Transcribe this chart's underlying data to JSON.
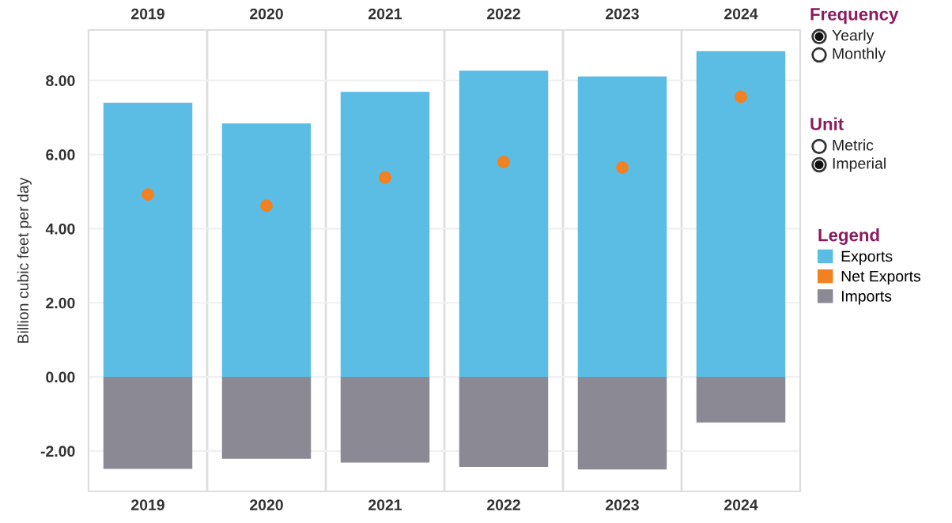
{
  "chart_data": {
    "type": "bar",
    "categories": [
      "2019",
      "2020",
      "2021",
      "2022",
      "2023",
      "2024"
    ],
    "ylabel": "Billion cubic feet per day",
    "legend_title": "Legend",
    "series": [
      {
        "name": "Exports",
        "color": "#5bbce4",
        "values": [
          7.4,
          6.84,
          7.69,
          8.26,
          8.11,
          8.79
        ]
      },
      {
        "name": "Net Exports",
        "type": "scatter",
        "color": "#f28121",
        "values": [
          4.92,
          4.62,
          5.38,
          5.8,
          5.65,
          7.56
        ]
      },
      {
        "name": "Imports",
        "color": "#8b8a94",
        "values": [
          -2.48,
          -2.21,
          -2.31,
          -2.43,
          -2.5,
          -1.23
        ]
      }
    ],
    "ylim": [
      -3.09,
      9.36
    ],
    "yticks": [
      {
        "value": -2,
        "label": "-2.00"
      },
      {
        "value": 0,
        "label": "0.00"
      },
      {
        "value": 2,
        "label": "2.00"
      },
      {
        "value": 4,
        "label": "4.00"
      },
      {
        "value": 6,
        "label": "6.00"
      },
      {
        "value": 8,
        "label": "8.00"
      }
    ],
    "stacked": true,
    "grid": "y",
    "legend": "right",
    "marker": "circle",
    "annotations": [
      "Frequency",
      "Yearly",
      "Monthly",
      "Unit",
      "Metric",
      "Imperial"
    ]
  }
}
